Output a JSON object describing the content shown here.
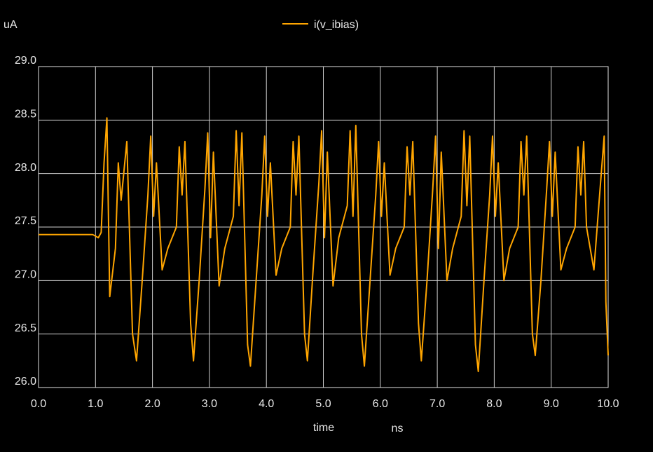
{
  "chart_data": {
    "type": "line",
    "y_unit": "uA",
    "x_label": "time",
    "x_unit": "ns",
    "grid": true,
    "xlim": [
      0,
      10
    ],
    "ylim": [
      26,
      29
    ],
    "xticks": [
      {
        "value": 0,
        "label": "0.0"
      },
      {
        "value": 1,
        "label": "1.0"
      },
      {
        "value": 2,
        "label": "2.0"
      },
      {
        "value": 3,
        "label": "3.0"
      },
      {
        "value": 4,
        "label": "4.0"
      },
      {
        "value": 5,
        "label": "5.0"
      },
      {
        "value": 6,
        "label": "6.0"
      },
      {
        "value": 7,
        "label": "7.0"
      },
      {
        "value": 8,
        "label": "8.0"
      },
      {
        "value": 9,
        "label": "9.0"
      },
      {
        "value": 10,
        "label": "10.0"
      }
    ],
    "yticks": [
      {
        "value": 26,
        "label": "26.0"
      },
      {
        "value": 26.5,
        "label": "26.5"
      },
      {
        "value": 27,
        "label": "27.0"
      },
      {
        "value": 27.5,
        "label": "27.5"
      },
      {
        "value": 28,
        "label": "28.0"
      },
      {
        "value": 28.5,
        "label": "28.5"
      },
      {
        "value": 29,
        "label": "29.0"
      }
    ],
    "series": [
      {
        "name": "i(v_ibias)",
        "color": "#ffa500",
        "x": [
          0,
          0.95,
          1.05,
          1.1,
          1.15,
          1.2,
          1.25,
          1.35,
          1.4,
          1.45,
          1.55,
          1.65,
          1.72,
          1.82,
          1.92,
          1.97,
          2.02,
          2.07,
          2.17,
          2.27,
          2.42,
          2.47,
          2.52,
          2.57,
          2.67,
          2.72,
          2.82,
          2.92,
          2.97,
          3.02,
          3.07,
          3.17,
          3.27,
          3.42,
          3.47,
          3.52,
          3.57,
          3.67,
          3.72,
          3.82,
          3.92,
          3.97,
          4.02,
          4.07,
          4.17,
          4.27,
          4.42,
          4.47,
          4.52,
          4.57,
          4.67,
          4.72,
          4.82,
          4.92,
          4.97,
          5.02,
          5.07,
          5.17,
          5.27,
          5.42,
          5.47,
          5.52,
          5.57,
          5.67,
          5.72,
          5.82,
          5.92,
          5.97,
          6.02,
          6.07,
          6.17,
          6.27,
          6.42,
          6.47,
          6.52,
          6.57,
          6.67,
          6.72,
          6.82,
          6.92,
          6.97,
          7.02,
          7.07,
          7.17,
          7.27,
          7.42,
          7.47,
          7.52,
          7.57,
          7.67,
          7.72,
          7.82,
          7.92,
          7.97,
          8.02,
          8.07,
          8.17,
          8.27,
          8.42,
          8.47,
          8.52,
          8.57,
          8.67,
          8.72,
          8.82,
          8.92,
          8.97,
          9.02,
          9.07,
          9.17,
          9.27,
          9.42,
          9.47,
          9.52,
          9.57,
          9.62,
          9.75,
          9.85,
          9.93,
          9.96,
          10
        ],
        "values": [
          27.43,
          27.43,
          27.4,
          27.45,
          28.1,
          28.52,
          26.85,
          27.3,
          28.1,
          27.75,
          28.3,
          26.5,
          26.25,
          27.0,
          27.8,
          28.35,
          27.6,
          28.1,
          27.1,
          27.3,
          27.5,
          28.25,
          27.8,
          28.3,
          26.6,
          26.25,
          27.0,
          27.85,
          28.38,
          27.4,
          28.2,
          26.95,
          27.3,
          27.6,
          28.4,
          27.7,
          28.38,
          26.4,
          26.2,
          27.0,
          27.8,
          28.35,
          27.6,
          28.1,
          27.05,
          27.3,
          27.5,
          28.3,
          27.8,
          28.35,
          26.5,
          26.25,
          27.1,
          27.9,
          28.4,
          27.4,
          28.2,
          26.95,
          27.4,
          27.7,
          28.4,
          27.6,
          28.45,
          26.5,
          26.2,
          27.0,
          27.8,
          28.3,
          27.6,
          28.1,
          27.05,
          27.3,
          27.5,
          28.25,
          27.8,
          28.3,
          26.6,
          26.25,
          27.0,
          27.85,
          28.35,
          27.3,
          28.2,
          27.0,
          27.3,
          27.6,
          28.4,
          27.7,
          28.35,
          26.4,
          26.15,
          27.0,
          27.8,
          28.35,
          27.6,
          28.1,
          27.0,
          27.3,
          27.5,
          28.3,
          27.8,
          28.35,
          26.5,
          26.3,
          27.0,
          27.85,
          28.3,
          27.6,
          28.2,
          27.1,
          27.3,
          27.5,
          28.25,
          27.8,
          28.3,
          27.5,
          27.1,
          27.8,
          28.35,
          26.8,
          26.3
        ]
      }
    ]
  }
}
